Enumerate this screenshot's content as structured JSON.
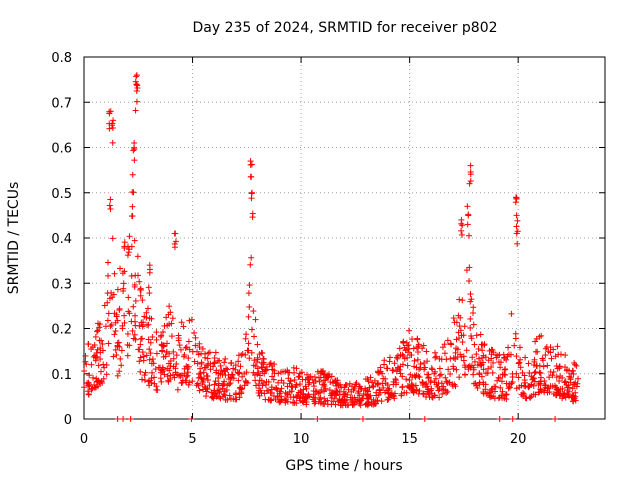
{
  "chart_data": {
    "type": "scatter",
    "title": "Day 235 of 2024, SRMTID for receiver p802",
    "xlabel": "GPS time / hours",
    "ylabel": "SRMTID / TECUs",
    "xlim": [
      0,
      24
    ],
    "ylim": [
      0,
      0.8
    ],
    "x_ticks": [
      0,
      5,
      10,
      15,
      20
    ],
    "x_tick_labels": [
      "0",
      "5",
      "10",
      "15",
      "20"
    ],
    "y_ticks": [
      0,
      0.1,
      0.2,
      0.3,
      0.4,
      0.5,
      0.6,
      0.7,
      0.8
    ],
    "y_tick_labels": [
      "0",
      "0.1",
      "0.2",
      "0.3",
      "0.4",
      "0.5",
      "0.6",
      "0.7",
      "0.8"
    ],
    "grid": true,
    "marker": "+",
    "color": "#ff0000",
    "series": [
      {
        "name": "SRMTID",
        "envelope_x": [
          0,
          0.5,
          1,
          1.2,
          1.5,
          1.8,
          2,
          2.3,
          2.6,
          3,
          3.5,
          4,
          4.3,
          4.6,
          5,
          5.5,
          6,
          6.5,
          7,
          7.5,
          7.7,
          8,
          8.5,
          9,
          9.5,
          10,
          10.5,
          11,
          11.5,
          12,
          12.5,
          13,
          13.5,
          14,
          14.5,
          15,
          15.5,
          16,
          16.5,
          17,
          17.5,
          17.8,
          18,
          18.5,
          19,
          19.5,
          19.8,
          20,
          20.5,
          21,
          21.5,
          22,
          22.5,
          22.8
        ],
        "envelope_y": [
          0.16,
          0.2,
          0.26,
          0.52,
          0.3,
          0.38,
          0.45,
          0.56,
          0.3,
          0.24,
          0.18,
          0.27,
          0.2,
          0.24,
          0.22,
          0.16,
          0.15,
          0.14,
          0.13,
          0.2,
          0.38,
          0.16,
          0.13,
          0.12,
          0.12,
          0.11,
          0.1,
          0.11,
          0.1,
          0.09,
          0.08,
          0.09,
          0.11,
          0.14,
          0.16,
          0.2,
          0.17,
          0.15,
          0.16,
          0.22,
          0.3,
          0.38,
          0.22,
          0.16,
          0.15,
          0.14,
          0.3,
          0.18,
          0.14,
          0.2,
          0.19,
          0.15,
          0.13,
          0.12
        ],
        "spikes": [
          {
            "x": 1.2,
            "y": 0.68
          },
          {
            "x": 1.3,
            "y": 0.66
          },
          {
            "x": 2.4,
            "y": 0.76
          },
          {
            "x": 2.45,
            "y": 0.74
          },
          {
            "x": 2.3,
            "y": 0.61
          },
          {
            "x": 7.7,
            "y": 0.57
          },
          {
            "x": 7.75,
            "y": 0.5
          },
          {
            "x": 17.8,
            "y": 0.56
          },
          {
            "x": 17.7,
            "y": 0.47
          },
          {
            "x": 17.4,
            "y": 0.44
          },
          {
            "x": 19.9,
            "y": 0.49
          },
          {
            "x": 19.95,
            "y": 0.45
          },
          {
            "x": 4.2,
            "y": 0.41
          },
          {
            "x": 3.0,
            "y": 0.34
          }
        ]
      }
    ],
    "zero_points_x": [
      1.55,
      1.8,
      2.15,
      4.95,
      10.75,
      12.85,
      15.7,
      19.15,
      19.75,
      21.7
    ]
  }
}
